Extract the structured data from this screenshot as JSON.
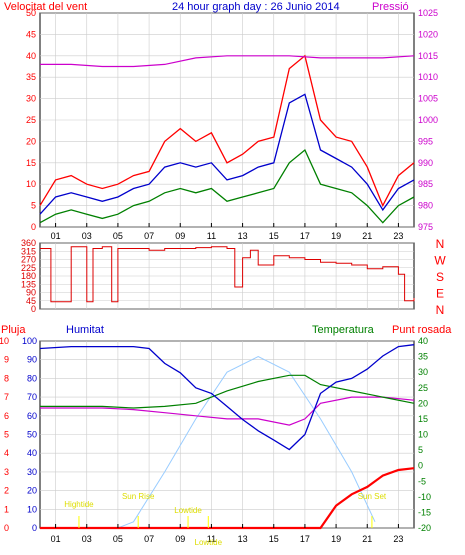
{
  "header": {
    "left_label": "Velocitat del vent",
    "title": "24 hour graph day : 26 Junio 2014",
    "right_label": "Pressió"
  },
  "labels_lower": {
    "rain": "Pluja",
    "humidity": "Humitat",
    "temperature": "Temperatura",
    "dew_point": "Punt rosada"
  },
  "direction_letters": [
    "N",
    "W",
    "S",
    "E",
    "N"
  ],
  "colors": {
    "wind_gust": "#ff0000",
    "wind_avg": "#0000cc",
    "wind_min": "#008000",
    "pressure": "#cc00cc",
    "direction": "#dd0000",
    "humidity": "#0000cc",
    "temperature": "#008000",
    "dew_point": "#cc00cc",
    "rain": "#ff0000",
    "sun_elevation": "#99ccff",
    "sun_markers": "#ffff00",
    "grid": "#cccccc",
    "frame": "#000000"
  },
  "chart_data": [
    {
      "type": "line",
      "name": "wind_pressure",
      "x_ticks": [
        "01",
        "03",
        "05",
        "07",
        "09",
        "11",
        "13",
        "15",
        "17",
        "19",
        "21",
        "23"
      ],
      "y_left": {
        "label": "Velocitat del vent",
        "ticks": [
          0,
          5,
          10,
          15,
          20,
          25,
          30,
          35,
          40,
          45,
          50
        ],
        "ylim": [
          0,
          50
        ]
      },
      "y_right": {
        "label": "Pressió",
        "ticks": [
          975,
          980,
          985,
          990,
          995,
          1000,
          1005,
          1010,
          1015,
          1020,
          1025
        ],
        "ylim": [
          975,
          1025
        ]
      },
      "series": [
        {
          "name": "gust",
          "axis": "left",
          "x": [
            0,
            1,
            2,
            3,
            4,
            5,
            6,
            7,
            8,
            9,
            10,
            11,
            12,
            13,
            14,
            15,
            16,
            17,
            18,
            19,
            20,
            21,
            22,
            23,
            24
          ],
          "values": [
            5,
            11,
            12,
            10,
            9,
            10,
            12,
            13,
            20,
            23,
            20,
            22,
            15,
            17,
            20,
            21,
            37,
            40,
            25,
            21,
            20,
            14,
            5,
            12,
            15
          ]
        },
        {
          "name": "average",
          "axis": "left",
          "x": [
            0,
            1,
            2,
            3,
            4,
            5,
            6,
            7,
            8,
            9,
            10,
            11,
            12,
            13,
            14,
            15,
            16,
            17,
            18,
            19,
            20,
            21,
            22,
            23,
            24
          ],
          "values": [
            3,
            7,
            8,
            7,
            6,
            7,
            9,
            10,
            14,
            15,
            14,
            15,
            11,
            12,
            14,
            15,
            29,
            31,
            18,
            16,
            14,
            10,
            4,
            9,
            11
          ]
        },
        {
          "name": "minimum",
          "axis": "left",
          "x": [
            0,
            1,
            2,
            3,
            4,
            5,
            6,
            7,
            8,
            9,
            10,
            11,
            12,
            13,
            14,
            15,
            16,
            17,
            18,
            19,
            20,
            21,
            22,
            23,
            24
          ],
          "values": [
            1,
            3,
            4,
            3,
            2,
            3,
            5,
            6,
            8,
            9,
            8,
            9,
            6,
            7,
            8,
            9,
            15,
            18,
            10,
            9,
            8,
            5,
            1,
            5,
            7
          ]
        },
        {
          "name": "pressure",
          "axis": "right",
          "x": [
            0,
            2,
            4,
            6,
            8,
            10,
            12,
            14,
            16,
            18,
            20,
            22,
            24
          ],
          "values": [
            1013,
            1013,
            1012.5,
            1012.5,
            1013,
            1014.5,
            1015,
            1015,
            1015,
            1014.5,
            1014.5,
            1014.5,
            1015
          ]
        }
      ]
    },
    {
      "type": "line",
      "name": "wind_direction",
      "y_ticks": [
        0,
        45,
        90,
        135,
        180,
        225,
        270,
        315,
        360
      ],
      "ylim": [
        0,
        360
      ],
      "series": [
        {
          "name": "direction",
          "x": [
            0,
            0.6,
            0.7,
            1.9,
            2.0,
            2.6,
            3.0,
            3.4,
            4.0,
            4.6,
            5.0,
            5.5,
            6.0,
            7.0,
            8.0,
            9.0,
            10.0,
            11.0,
            12.0,
            12.5,
            13.0,
            13.5,
            14.0,
            15.0,
            16.0,
            17.0,
            18.0,
            19.0,
            20.0,
            21.0,
            22.0,
            23.0,
            23.4,
            24.0
          ],
          "values": [
            330,
            330,
            40,
            40,
            340,
            340,
            40,
            330,
            340,
            40,
            330,
            330,
            330,
            320,
            330,
            330,
            335,
            340,
            330,
            120,
            280,
            320,
            240,
            290,
            280,
            270,
            255,
            250,
            240,
            220,
            230,
            190,
            45,
            60
          ]
        }
      ]
    },
    {
      "type": "line",
      "name": "climate",
      "y_left_outer": {
        "label": "Pluja",
        "ticks": [
          0,
          1,
          2,
          3,
          4,
          5,
          6,
          7,
          8,
          9,
          10
        ],
        "ylim": [
          0,
          10
        ]
      },
      "y_left_inner": {
        "label": "Humitat",
        "ticks": [
          0,
          10,
          20,
          30,
          40,
          50,
          60,
          70,
          80,
          90,
          100
        ],
        "ylim": [
          0,
          100
        ]
      },
      "y_right": {
        "label": "Temperatura",
        "ticks": [
          -20,
          -15,
          -10,
          -5,
          0,
          5,
          10,
          15,
          20,
          25,
          30,
          35,
          40
        ],
        "ylim": [
          -20,
          40
        ]
      },
      "sun_markers": [
        "Hightide",
        "Sun Rise",
        "Lowtide",
        "Lowtide",
        "Sun Set"
      ],
      "series": [
        {
          "name": "humidity",
          "axis": "humidity",
          "x": [
            0,
            2,
            4,
            6,
            7,
            8,
            9,
            10,
            11,
            12,
            13,
            14,
            15,
            16,
            17,
            18,
            19,
            20,
            21,
            22,
            23,
            24
          ],
          "values": [
            96,
            97,
            97,
            97,
            96,
            88,
            83,
            75,
            72,
            65,
            58,
            52,
            47,
            42,
            50,
            72,
            78,
            80,
            85,
            92,
            97,
            98
          ]
        },
        {
          "name": "temperature",
          "axis": "temperature",
          "x": [
            0,
            2,
            4,
            6,
            8,
            10,
            12,
            14,
            16,
            17,
            18,
            20,
            22,
            24
          ],
          "values": [
            19,
            19,
            19,
            18.5,
            19,
            20,
            24,
            27,
            29,
            29,
            26,
            24,
            22,
            20
          ]
        },
        {
          "name": "dew_point",
          "axis": "temperature",
          "x": [
            0,
            2,
            4,
            6,
            8,
            10,
            12,
            14,
            16,
            17,
            18,
            20,
            22,
            24
          ],
          "values": [
            18.5,
            18.5,
            18.5,
            18,
            17,
            16,
            15,
            15,
            13,
            15,
            20,
            22,
            22,
            21
          ]
        },
        {
          "name": "rain",
          "axis": "rain",
          "x": [
            0,
            2,
            4,
            6,
            8,
            10,
            12,
            14,
            16,
            17,
            18,
            19,
            20,
            21,
            22,
            23,
            24
          ],
          "values": [
            0,
            0,
            0,
            0,
            0,
            0,
            0,
            0,
            0,
            0,
            0,
            1.2,
            1.8,
            2.2,
            2.8,
            3.1,
            3.2
          ]
        },
        {
          "name": "sun_elevation",
          "axis": "temperature",
          "x": [
            5,
            6,
            8,
            10,
            12,
            14,
            16,
            18,
            20,
            21.5
          ],
          "values": [
            -25,
            -18,
            -2,
            15,
            30,
            35,
            30,
            15,
            -2,
            -18
          ]
        }
      ]
    }
  ]
}
